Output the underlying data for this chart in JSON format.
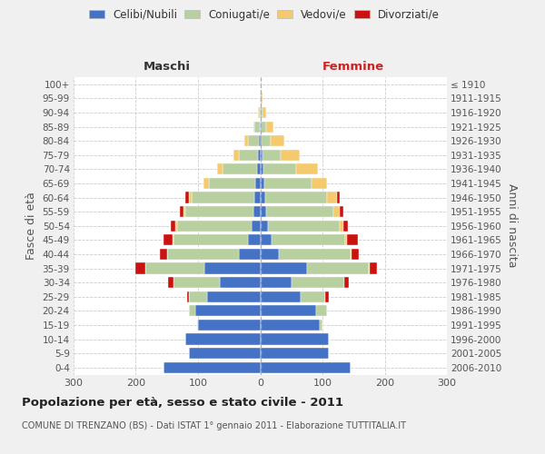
{
  "age_groups": [
    "0-4",
    "5-9",
    "10-14",
    "15-19",
    "20-24",
    "25-29",
    "30-34",
    "35-39",
    "40-44",
    "45-49",
    "50-54",
    "55-59",
    "60-64",
    "65-69",
    "70-74",
    "75-79",
    "80-84",
    "85-89",
    "90-94",
    "95-99",
    "100+"
  ],
  "birth_years": [
    "2006-2010",
    "2001-2005",
    "1996-2000",
    "1991-1995",
    "1986-1990",
    "1981-1985",
    "1976-1980",
    "1971-1975",
    "1966-1970",
    "1961-1965",
    "1956-1960",
    "1951-1955",
    "1946-1950",
    "1941-1945",
    "1936-1940",
    "1931-1935",
    "1926-1930",
    "1921-1925",
    "1916-1920",
    "1911-1915",
    "≤ 1910"
  ],
  "male": {
    "celibi": [
      155,
      115,
      120,
      100,
      105,
      85,
      65,
      90,
      35,
      20,
      14,
      11,
      10,
      8,
      5,
      3,
      2,
      1,
      0,
      0,
      0
    ],
    "coniugati": [
      0,
      0,
      0,
      2,
      10,
      30,
      75,
      95,
      115,
      120,
      120,
      110,
      100,
      75,
      55,
      32,
      18,
      8,
      2,
      1,
      0
    ],
    "vedovi": [
      0,
      0,
      0,
      0,
      0,
      0,
      0,
      0,
      0,
      1,
      2,
      3,
      5,
      8,
      10,
      8,
      5,
      2,
      1,
      0,
      0
    ],
    "divorziati": [
      0,
      0,
      0,
      0,
      0,
      3,
      8,
      15,
      12,
      15,
      8,
      5,
      5,
      0,
      0,
      0,
      0,
      0,
      0,
      0,
      0
    ]
  },
  "female": {
    "nubili": [
      145,
      110,
      110,
      95,
      90,
      65,
      50,
      75,
      30,
      18,
      13,
      10,
      8,
      7,
      5,
      3,
      2,
      1,
      1,
      0,
      0
    ],
    "coniugate": [
      0,
      0,
      0,
      5,
      18,
      40,
      85,
      100,
      115,
      118,
      115,
      108,
      100,
      75,
      52,
      30,
      15,
      8,
      3,
      1,
      0
    ],
    "vedove": [
      0,
      0,
      0,
      0,
      0,
      0,
      0,
      1,
      2,
      3,
      5,
      10,
      15,
      25,
      35,
      30,
      22,
      12,
      5,
      2,
      1
    ],
    "divorziate": [
      0,
      0,
      0,
      0,
      0,
      5,
      8,
      12,
      12,
      18,
      8,
      5,
      5,
      0,
      0,
      0,
      0,
      0,
      0,
      0,
      0
    ]
  },
  "colors": {
    "celibi": "#4472c4",
    "coniugati": "#b8cfa0",
    "vedovi": "#f5c96e",
    "divorziati": "#cc1111"
  },
  "xlim": 300,
  "title": "Popolazione per età, sesso e stato civile - 2011",
  "subtitle": "COMUNE DI TRENZANO (BS) - Dati ISTAT 1° gennaio 2011 - Elaborazione TUTTITALIA.IT",
  "ylabel_left": "Fasce di età",
  "ylabel_right": "Anni di nascita",
  "label_maschi": "Maschi",
  "label_femmine": "Femmine",
  "legend_labels": [
    "Celibi/Nubili",
    "Coniugati/e",
    "Vedovi/e",
    "Divorziati/e"
  ],
  "bg_color": "#f0f0f0",
  "plot_bg": "#ffffff",
  "grid_color": "#cccccc"
}
